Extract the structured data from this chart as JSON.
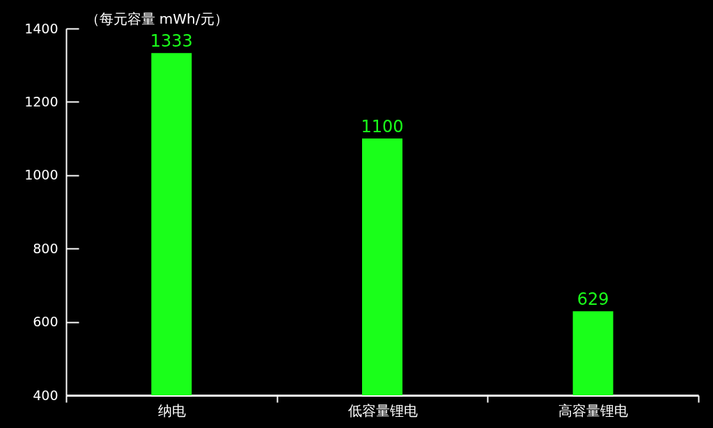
{
  "chart_data": {
    "type": "bar",
    "ylabel": "（每元容量 mWh/元）",
    "categories": [
      "纳电",
      "低容量锂电",
      "高容量锂电"
    ],
    "values": [
      1333,
      1100,
      629
    ],
    "color": "#1aff1a",
    "ylim": [
      400,
      1400
    ],
    "yticks": [
      400,
      600,
      800,
      1000,
      1200,
      1400
    ],
    "data_labels": true
  }
}
